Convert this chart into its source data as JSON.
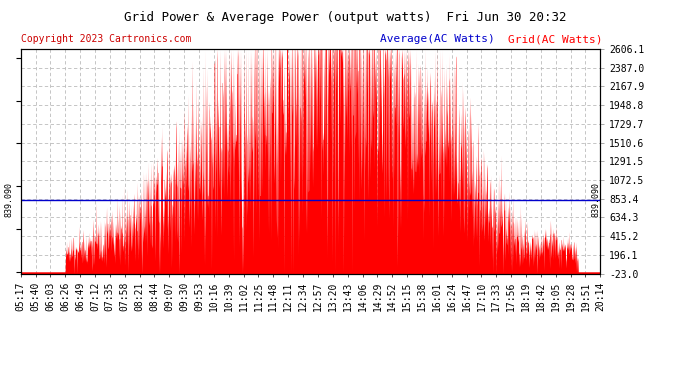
{
  "title": "Grid Power & Average Power (output watts)  Fri Jun 30 20:32",
  "copyright": "Copyright 2023 Cartronics.com",
  "legend_avg": "Average(AC Watts)",
  "legend_grid": "Grid(AC Watts)",
  "ymin": -23.0,
  "ymax": 2606.1,
  "yticks": [
    2606.1,
    2387.0,
    2167.9,
    1948.8,
    1729.7,
    1510.6,
    1291.5,
    1072.5,
    853.4,
    634.3,
    415.2,
    196.1,
    -23.0
  ],
  "avg_line_value": 839.09,
  "avg_label": "839.090",
  "bg_color": "#ffffff",
  "grid_color": "#bbbbbb",
  "fill_color": "#ff0000",
  "line_color": "#0000cc",
  "title_color": "#000000",
  "copyright_color": "#cc0000",
  "legend_avg_color": "#0000cc",
  "legend_grid_color": "#ff0000",
  "xtick_labels": [
    "05:17",
    "05:40",
    "06:03",
    "06:26",
    "06:49",
    "07:12",
    "07:35",
    "07:58",
    "08:21",
    "08:44",
    "09:07",
    "09:30",
    "09:53",
    "10:16",
    "10:39",
    "11:02",
    "11:25",
    "11:48",
    "12:11",
    "12:34",
    "12:57",
    "13:20",
    "13:43",
    "14:06",
    "14:29",
    "14:52",
    "15:15",
    "15:38",
    "16:01",
    "16:24",
    "16:47",
    "17:10",
    "17:33",
    "17:56",
    "18:19",
    "18:42",
    "19:05",
    "19:28",
    "19:51",
    "20:14"
  ],
  "title_fontsize": 9,
  "tick_fontsize": 7,
  "copyright_fontsize": 7,
  "legend_fontsize": 8
}
